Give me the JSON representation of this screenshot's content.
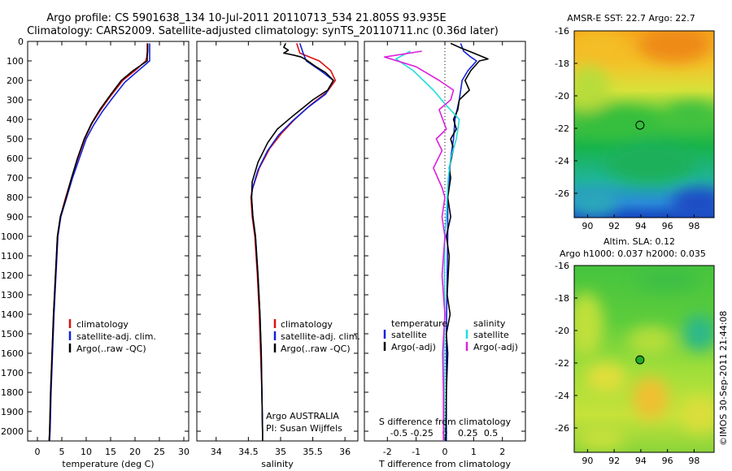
{
  "title": {
    "line1": "Argo profile: CS 5901638_134 10-Jul-2011 20110713_534 21.805S 93.935E",
    "line2": "Climatology: CARS2009. Satellite-adjusted climatology: synTS_20110711.nc (0.36d later)"
  },
  "credit": "©IMOS 30-Sep-2011 21:44:08",
  "chart_data": [
    {
      "type": "line",
      "name": "temperature-profile",
      "xlabel": "temperature (deg C)",
      "ylabel": "",
      "xlim": [
        -2,
        31
      ],
      "ylim": [
        0,
        2050
      ],
      "y_reversed": true,
      "xticks": [
        0,
        5,
        10,
        15,
        20,
        25,
        30
      ],
      "yticks": [
        0,
        100,
        200,
        300,
        400,
        500,
        600,
        700,
        800,
        900,
        1000,
        1100,
        1200,
        1300,
        1400,
        1500,
        1600,
        1700,
        1800,
        1900,
        2000
      ],
      "legend": [
        "climatology",
        "satellite-adj. clim.",
        "Argo(..raw -QC)"
      ],
      "colors": [
        "#dd1111",
        "#1122dd",
        "#000000"
      ],
      "series": [
        {
          "name": "climatology",
          "points": [
            [
              22.5,
              10
            ],
            [
              22.5,
              50
            ],
            [
              22.4,
              80
            ],
            [
              22.2,
              100
            ],
            [
              20,
              150
            ],
            [
              17.5,
              200
            ],
            [
              15,
              280
            ],
            [
              13,
              350
            ],
            [
              11.2,
              420
            ],
            [
              9.7,
              500
            ],
            [
              8.3,
              600
            ],
            [
              7,
              700
            ],
            [
              5.8,
              800
            ],
            [
              4.7,
              900
            ],
            [
              4.1,
              1000
            ],
            [
              3.7,
              1200
            ],
            [
              3.3,
              1400
            ],
            [
              3,
              1600
            ],
            [
              2.7,
              1800
            ],
            [
              2.5,
              2000
            ],
            [
              2.4,
              2050
            ]
          ]
        },
        {
          "name": "satellite-adj. clim.",
          "points": [
            [
              23,
              10
            ],
            [
              23,
              50
            ],
            [
              23,
              80
            ],
            [
              23,
              100
            ],
            [
              20.2,
              160
            ],
            [
              17.9,
              210
            ],
            [
              15.4,
              290
            ],
            [
              13.3,
              360
            ],
            [
              11.5,
              430
            ],
            [
              10,
              500
            ],
            [
              8.6,
              600
            ],
            [
              7.2,
              700
            ],
            [
              6,
              800
            ],
            [
              4.8,
              900
            ],
            [
              4.2,
              1000
            ],
            [
              3.8,
              1200
            ],
            [
              3.4,
              1400
            ],
            [
              3.1,
              1600
            ],
            [
              2.8,
              1800
            ],
            [
              2.6,
              2000
            ],
            [
              2.5,
              2050
            ]
          ]
        },
        {
          "name": "Argo(..raw -QC)",
          "points": [
            [
              22.6,
              10
            ],
            [
              22.6,
              50
            ],
            [
              22.5,
              80
            ],
            [
              22.5,
              100
            ],
            [
              19.6,
              150
            ],
            [
              17.2,
              200
            ],
            [
              14.8,
              280
            ],
            [
              12.8,
              350
            ],
            [
              11.1,
              420
            ],
            [
              9.6,
              500
            ],
            [
              8.2,
              600
            ],
            [
              7,
              700
            ],
            [
              5.9,
              800
            ],
            [
              4.7,
              900
            ],
            [
              4.1,
              1000
            ],
            [
              3.7,
              1200
            ],
            [
              3.3,
              1400
            ],
            [
              3,
              1600
            ],
            [
              2.7,
              1800
            ],
            [
              2.5,
              2000
            ],
            [
              2.4,
              2050
            ]
          ]
        }
      ]
    },
    {
      "type": "line",
      "name": "salinity-profile",
      "xlabel": "salinity",
      "ylabel": "",
      "xlim": [
        33.7,
        36.2
      ],
      "ylim": [
        0,
        2050
      ],
      "y_reversed": true,
      "xticks": [
        34,
        34.5,
        35,
        35.5,
        36
      ],
      "yticks": [],
      "legend": [
        "climatology",
        "satellite-adj. clim.",
        "Argo(..raw -QC)"
      ],
      "annotation": [
        "Argo AUSTRALIA",
        "PI: Susan Wijffels"
      ],
      "colors": [
        "#dd1111",
        "#1122dd",
        "#000000"
      ],
      "series": [
        {
          "name": "climatology",
          "points": [
            [
              35.25,
              10
            ],
            [
              35.3,
              60
            ],
            [
              35.6,
              100
            ],
            [
              35.78,
              150
            ],
            [
              35.85,
              200
            ],
            [
              35.72,
              260
            ],
            [
              35.45,
              330
            ],
            [
              35.22,
              400
            ],
            [
              35.02,
              470
            ],
            [
              34.83,
              550
            ],
            [
              34.67,
              650
            ],
            [
              34.57,
              750
            ],
            [
              34.54,
              800
            ],
            [
              34.56,
              900
            ],
            [
              34.6,
              1000
            ],
            [
              34.64,
              1200
            ],
            [
              34.67,
              1400
            ],
            [
              34.69,
              1600
            ],
            [
              34.71,
              1800
            ],
            [
              34.72,
              2000
            ],
            [
              34.72,
              2050
            ]
          ]
        },
        {
          "name": "satellite-adj. clim.",
          "points": [
            [
              35.3,
              10
            ],
            [
              35.35,
              60
            ],
            [
              35.4,
              100
            ],
            [
              35.62,
              150
            ],
            [
              35.82,
              200
            ],
            [
              35.7,
              270
            ],
            [
              35.42,
              340
            ],
            [
              35.18,
              410
            ],
            [
              34.97,
              480
            ],
            [
              34.8,
              560
            ],
            [
              34.65,
              660
            ],
            [
              34.56,
              760
            ],
            [
              34.55,
              800
            ],
            [
              34.57,
              900
            ],
            [
              34.61,
              1000
            ],
            [
              34.65,
              1200
            ],
            [
              34.68,
              1400
            ],
            [
              34.7,
              1600
            ],
            [
              34.71,
              1800
            ],
            [
              34.72,
              2000
            ],
            [
              34.72,
              2050
            ]
          ]
        },
        {
          "name": "Argo(..raw -QC)",
          "points": [
            [
              35.08,
              10
            ],
            [
              35.05,
              30
            ],
            [
              35.12,
              45
            ],
            [
              35.05,
              60
            ],
            [
              35.2,
              70
            ],
            [
              35.32,
              80
            ],
            [
              35.4,
              95
            ],
            [
              35.55,
              130
            ],
            [
              35.7,
              160
            ],
            [
              35.82,
              200
            ],
            [
              35.73,
              250
            ],
            [
              35.5,
              300
            ],
            [
              35.2,
              380
            ],
            [
              34.95,
              450
            ],
            [
              34.8,
              520
            ],
            [
              34.65,
              620
            ],
            [
              34.56,
              720
            ],
            [
              34.55,
              800
            ],
            [
              34.57,
              900
            ],
            [
              34.61,
              1000
            ],
            [
              34.65,
              1200
            ],
            [
              34.68,
              1400
            ],
            [
              34.7,
              1600
            ],
            [
              34.71,
              1800
            ],
            [
              34.72,
              2000
            ],
            [
              34.72,
              2050
            ]
          ]
        }
      ]
    },
    {
      "type": "line",
      "name": "difference-profile",
      "xlabel": "T difference from climatology",
      "xlabel_top": "S difference from climatology",
      "ylabel": "",
      "xlim": [
        -2.8,
        2.8
      ],
      "ylim": [
        0,
        2050
      ],
      "y_reversed": true,
      "xticks_bottom": [
        -2,
        -1,
        0,
        1,
        2
      ],
      "xticks_top": [
        -0.5,
        -0.25,
        0,
        0.25,
        0.5
      ],
      "yticks": [],
      "legend_temperature": {
        "title": "temperature",
        "items": [
          "satellite",
          "Argo(-adj)"
        ]
      },
      "legend_salinity": {
        "title": "salinity",
        "items": [
          "satellite",
          "Argo(-adj)"
        ]
      },
      "colors": [
        "#1122dd",
        "#000000",
        "#22dddd",
        "#dd22dd"
      ],
      "series": [
        {
          "name": "temperature satellite",
          "points": [
            [
              0.55,
              10
            ],
            [
              0.65,
              50
            ],
            [
              0.9,
              80
            ],
            [
              1.1,
              100
            ],
            [
              0.8,
              150
            ],
            [
              0.6,
              200
            ],
            [
              0.5,
              300
            ],
            [
              0.35,
              400
            ],
            [
              0.3,
              500
            ],
            [
              0.2,
              600
            ],
            [
              0.15,
              700
            ],
            [
              0.1,
              800
            ],
            [
              0.1,
              1000
            ],
            [
              0.08,
              1200
            ],
            [
              0.05,
              1500
            ],
            [
              0.05,
              1800
            ],
            [
              0.05,
              2050
            ]
          ]
        },
        {
          "name": "temperature Argo(-adj)",
          "points": [
            [
              0.2,
              10
            ],
            [
              0.5,
              30
            ],
            [
              1,
              60
            ],
            [
              1.5,
              90
            ],
            [
              1.2,
              100
            ],
            [
              0.9,
              150
            ],
            [
              0.7,
              200
            ],
            [
              0.85,
              250
            ],
            [
              0.5,
              300
            ],
            [
              0.45,
              350
            ],
            [
              0.3,
              400
            ],
            [
              0.4,
              450
            ],
            [
              0.2,
              500
            ],
            [
              0.3,
              550
            ],
            [
              0.15,
              650
            ],
            [
              0.2,
              700
            ],
            [
              0.1,
              800
            ],
            [
              0.2,
              900
            ],
            [
              0.05,
              1000
            ],
            [
              0.15,
              1100
            ],
            [
              0.08,
              1300
            ],
            [
              0.18,
              1400
            ],
            [
              0.05,
              1500
            ],
            [
              0.1,
              1600
            ],
            [
              0.05,
              1800
            ],
            [
              0.03,
              2050
            ]
          ]
        },
        {
          "name": "salinity satellite",
          "points": [
            [
              -1.2,
              50
            ],
            [
              -1.7,
              90
            ],
            [
              -1.1,
              150
            ],
            [
              -0.4,
              250
            ],
            [
              0,
              320
            ],
            [
              0.5,
              400
            ],
            [
              0.4,
              500
            ],
            [
              0.2,
              600
            ],
            [
              0.12,
              700
            ],
            [
              0.08,
              800
            ],
            [
              0.05,
              900
            ],
            [
              0,
              1000
            ],
            [
              -0.02,
              1200
            ],
            [
              0,
              1400
            ],
            [
              -0.03,
              1600
            ],
            [
              -0.02,
              1800
            ],
            [
              -0.03,
              2000
            ],
            [
              -0.03,
              2050
            ]
          ]
        },
        {
          "name": "salinity Argo(-adj)",
          "points": [
            [
              -0.8,
              50
            ],
            [
              -2.1,
              80
            ],
            [
              -1,
              130
            ],
            [
              -0.2,
              200
            ],
            [
              0.3,
              250
            ],
            [
              0.2,
              300
            ],
            [
              -0.2,
              350
            ],
            [
              0.05,
              450
            ],
            [
              -0.3,
              500
            ],
            [
              -0.1,
              560
            ],
            [
              -0.4,
              650
            ],
            [
              -0.1,
              750
            ],
            [
              0,
              800
            ],
            [
              -0.1,
              900
            ],
            [
              0,
              1000
            ],
            [
              -0.1,
              1200
            ],
            [
              0,
              1400
            ],
            [
              -0.08,
              1600
            ],
            [
              -0.05,
              1800
            ],
            [
              -0.05,
              2050
            ]
          ]
        }
      ]
    },
    {
      "type": "heatmap",
      "name": "sst-map",
      "title": "AMSR-E SST: 22.7  Argo: 22.7",
      "xlim": [
        89,
        99.5
      ],
      "ylim": [
        -27.5,
        -16
      ],
      "xticks": [
        90,
        92,
        94,
        96,
        98
      ],
      "yticks": [
        -16,
        -18,
        -20,
        -22,
        -24,
        -26
      ],
      "marker": {
        "lon": 93.935,
        "lat": -21.805,
        "fill": "none"
      }
    },
    {
      "type": "heatmap",
      "name": "sla-map",
      "title_line1": "Altim. SLA: 0.12",
      "title_line2": "Argo h1000: 0.037 h2000: 0.035",
      "xlim": [
        89,
        99.5
      ],
      "ylim": [
        -27.5,
        -16
      ],
      "xticks": [
        90,
        92,
        94,
        96,
        98
      ],
      "yticks": [
        -16,
        -18,
        -20,
        -22,
        -24,
        -26
      ],
      "marker": {
        "lon": 93.935,
        "lat": -21.805,
        "fill": "#22aa22"
      }
    }
  ]
}
